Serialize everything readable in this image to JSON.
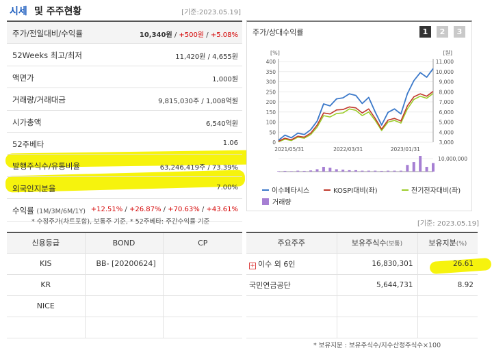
{
  "header": {
    "title_a": "시세",
    "title_b": "및 주주현황",
    "date": "[기준:2023.05.19]"
  },
  "market": {
    "rows": [
      {
        "label": "주가/전일대비/수익률",
        "price": "10,340원",
        "change": "+500원",
        "rate": "+5.08%"
      },
      {
        "label": "52Weeks 최고/최저",
        "value": "11,420원 / 4,655원"
      },
      {
        "label": "액면가",
        "value": "1,000원"
      },
      {
        "label": "거래량/거래대금",
        "value": "9,815,030주 / 1,008억원"
      },
      {
        "label": "시가총액",
        "value": "6,540억원"
      },
      {
        "label": "52주베타",
        "value": "1.06"
      },
      {
        "label": "발행주식수/유통비율",
        "value": "63,246,419주 / 73.39%"
      },
      {
        "label": "외국인지분율",
        "value": "7.00%"
      },
      {
        "label": "수익률",
        "label_sub": "(1M/3M/6M/1Y)",
        "r1": "+12.51%",
        "r2": "+26.87%",
        "r3": "+70.63%",
        "r4": "+43.61%"
      }
    ],
    "note": "* 수정주가(차트포함), 보통주 기준, * 52주베타: 주간수익률 기준"
  },
  "chart_panel": {
    "title": "주가/상대수익률",
    "pages": [
      "1",
      "2",
      "3"
    ],
    "active_page": "1"
  },
  "chart_data": {
    "type": "line",
    "left_axis_label": "[%]",
    "right_axis_label": "[원]",
    "left_ticks": [
      "400",
      "350",
      "300",
      "250",
      "200",
      "150",
      "100",
      "50",
      "0"
    ],
    "right_ticks": [
      "11,000",
      "10,000",
      "9,000",
      "8,000",
      "7,000",
      "6,000",
      "5,000",
      "4,000",
      "3,000"
    ],
    "left_ylim": [
      0,
      400
    ],
    "volume_tick": "10,000,000",
    "x_ticks": [
      "2021/05/31",
      "2022/03/31",
      "2023/01/31"
    ],
    "series": [
      {
        "name": "이수페타시스",
        "color": "#3a78c9",
        "values": [
          10,
          35,
          22,
          45,
          38,
          62,
          105,
          190,
          180,
          215,
          220,
          240,
          232,
          192,
          222,
          150,
          85,
          148,
          165,
          140,
          240,
          305,
          345,
          322,
          365
        ]
      },
      {
        "name": "KOSPI대비(좌)",
        "color": "#c0392b",
        "values": [
          5,
          20,
          12,
          30,
          25,
          45,
          85,
          145,
          140,
          160,
          162,
          175,
          170,
          145,
          165,
          118,
          65,
          110,
          118,
          105,
          180,
          225,
          240,
          228,
          252
        ]
      },
      {
        "name": "전기전자대비(좌)",
        "color": "#9ccc2a",
        "values": [
          2,
          15,
          8,
          25,
          20,
          38,
          75,
          132,
          125,
          142,
          145,
          165,
          158,
          132,
          150,
          108,
          58,
          100,
          108,
          95,
          165,
          212,
          228,
          218,
          242
        ]
      }
    ],
    "volume": {
      "name": "거래량",
      "color": "#a67fd3",
      "values": [
        0.1,
        0.15,
        0.1,
        0.2,
        0.15,
        0.25,
        0.5,
        1.0,
        0.8,
        0.5,
        0.4,
        0.3,
        0.3,
        0.2,
        0.2,
        0.2,
        0.15,
        0.2,
        0.2,
        0.2,
        1.4,
        2.0,
        3.3,
        1.0,
        1.8
      ]
    }
  },
  "credit": {
    "headers": [
      "신용등급",
      "BOND",
      "CP"
    ],
    "rows": [
      {
        "agency": "KIS",
        "bond": "BB-  [20200624]",
        "cp": ""
      },
      {
        "agency": "KR",
        "bond": "",
        "cp": ""
      },
      {
        "agency": "NICE",
        "bond": "",
        "cp": ""
      },
      {
        "agency": "",
        "bond": "",
        "cp": ""
      }
    ]
  },
  "holders": {
    "date": "[기준: 2023.05.19]",
    "headers": {
      "h1": "주요주주",
      "h2": "보유주식수",
      "h2_unit": "(보통)",
      "h3": "보유지분",
      "h3_unit": "(%)"
    },
    "rows": [
      {
        "name": "이수 외 6인",
        "shares": "16,830,301",
        "pct": "26.61"
      },
      {
        "name": "국민연금공단",
        "shares": "5,644,731",
        "pct": "8.92"
      },
      {
        "name": "",
        "shares": "",
        "pct": ""
      },
      {
        "name": "",
        "shares": "",
        "pct": ""
      }
    ],
    "note": "* 보유지분 : 보유주식수/지수산정주식수×100"
  },
  "colors": {
    "accent": "#1f5fbf",
    "highlight": "#f5f200",
    "up": "#d40000"
  }
}
